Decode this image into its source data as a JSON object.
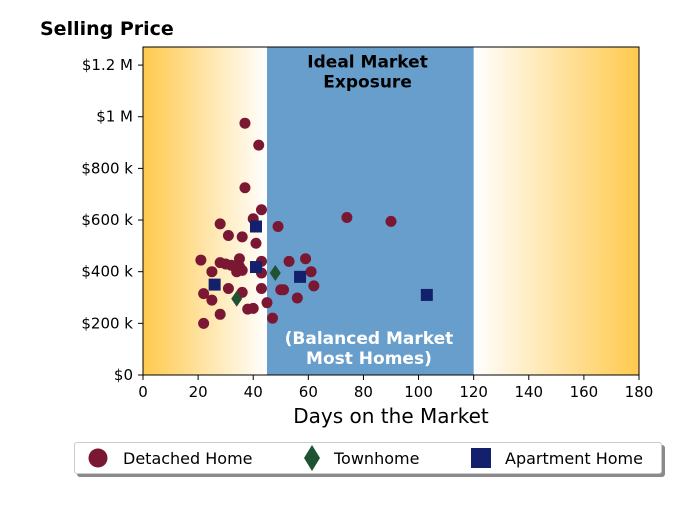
{
  "chart_data": {
    "type": "scatter",
    "title": "Selling Price",
    "xlabel": "Days on the Market",
    "ylabel": "",
    "xlim": [
      0,
      180
    ],
    "ylim": [
      0,
      1270000
    ],
    "xticks": [
      0,
      20,
      40,
      60,
      80,
      100,
      120,
      140,
      160,
      180
    ],
    "xtick_labels": [
      "0",
      "20",
      "40",
      "60",
      "80",
      "100",
      "120",
      "140",
      "160",
      "180"
    ],
    "yticks": [
      0,
      200000,
      400000,
      600000,
      800000,
      1000000,
      1200000
    ],
    "ytick_labels": [
      "$0",
      "$200 k",
      "$400 k",
      "$600 k",
      "$800 k",
      "$1 M",
      "$1.2 M"
    ],
    "grid": false,
    "legend_position": "bottom",
    "background_band": {
      "x_start": 45,
      "x_end": 120,
      "color": "#689ecc"
    },
    "background_gradient_color": "#ffc94d",
    "annotations": [
      {
        "text_lines": [
          "Ideal Market",
          "Exposure"
        ],
        "x": 81.5,
        "y": 1190000,
        "color": "#000000"
      },
      {
        "text_lines": [
          "(Balanced Market",
          "Most Homes)"
        ],
        "x": 82,
        "y": 120000,
        "color": "#ffffff"
      }
    ],
    "series": [
      {
        "name": "Detached Home",
        "marker": "circle",
        "color": "#7a1733",
        "points": [
          [
            37,
            975000
          ],
          [
            42,
            890000
          ],
          [
            37,
            725000
          ],
          [
            43,
            640000
          ],
          [
            28,
            585000
          ],
          [
            40,
            605000
          ],
          [
            49,
            575000
          ],
          [
            36,
            535000
          ],
          [
            31,
            540000
          ],
          [
            41,
            510000
          ],
          [
            74,
            610000
          ],
          [
            90,
            595000
          ],
          [
            21,
            445000
          ],
          [
            28,
            435000
          ],
          [
            30,
            430000
          ],
          [
            32,
            425000
          ],
          [
            35,
            450000
          ],
          [
            35,
            420000
          ],
          [
            36,
            405000
          ],
          [
            34,
            400000
          ],
          [
            25,
            400000
          ],
          [
            43,
            440000
          ],
          [
            43,
            395000
          ],
          [
            53,
            440000
          ],
          [
            59,
            450000
          ],
          [
            61,
            400000
          ],
          [
            22,
            315000
          ],
          [
            25,
            290000
          ],
          [
            31,
            335000
          ],
          [
            36,
            320000
          ],
          [
            43,
            335000
          ],
          [
            50,
            330000
          ],
          [
            51,
            330000
          ],
          [
            56,
            298000
          ],
          [
            62,
            345000
          ],
          [
            45,
            280000
          ],
          [
            38,
            255000
          ],
          [
            40,
            258000
          ],
          [
            28,
            235000
          ],
          [
            47,
            220000
          ],
          [
            22,
            200000
          ]
        ]
      },
      {
        "name": "Townhome",
        "marker": "diamond",
        "color": "#1e5232",
        "points": [
          [
            34,
            295000
          ],
          [
            48,
            395000
          ]
        ]
      },
      {
        "name": "Apartment Home",
        "marker": "square",
        "color": "#13206b",
        "points": [
          [
            41,
            575000
          ],
          [
            41,
            418000
          ],
          [
            26,
            350000
          ],
          [
            57,
            380000
          ],
          [
            103,
            310000
          ]
        ]
      }
    ]
  }
}
